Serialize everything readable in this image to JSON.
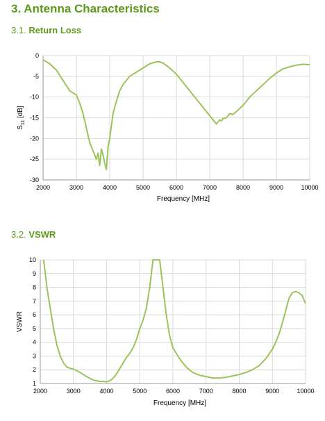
{
  "section": {
    "number": "3.",
    "title": "Antenna Characteristics"
  },
  "subsections": [
    {
      "number": "3.1.",
      "title": "Return Loss"
    },
    {
      "number": "3.2.",
      "title": "VSWR"
    }
  ],
  "line_color": "#9bc35a",
  "heading_color": "#5c9a1b",
  "chart_data": [
    {
      "type": "line",
      "title": "",
      "xlabel": "Frequency [MHz]",
      "ylabel": "S11 [dB]",
      "ylabel_main": "S",
      "ylabel_sub": "11",
      "ylabel_unit": " [dB]",
      "xlim": [
        2000,
        10000
      ],
      "ylim": [
        -30,
        0
      ],
      "xticks": [
        2000,
        3000,
        4000,
        5000,
        6000,
        7000,
        8000,
        9000,
        10000
      ],
      "yticks": [
        0,
        -5,
        -10,
        -15,
        -20,
        -25,
        -30
      ],
      "grid": true,
      "series": [
        {
          "x": [
            2000,
            2200,
            2400,
            2600,
            2800,
            2900,
            3000,
            3100,
            3200,
            3300,
            3400,
            3500,
            3600,
            3650,
            3700,
            3750,
            3800,
            3850,
            3900,
            3950,
            4000,
            4050,
            4100,
            4200,
            4300,
            4400,
            4500,
            4600,
            4800,
            5000,
            5200,
            5400,
            5500,
            5600,
            5800,
            6000,
            6200,
            6400,
            6600,
            6800,
            7000,
            7100,
            7200,
            7250,
            7300,
            7350,
            7400,
            7500,
            7600,
            7700,
            7800,
            8000,
            8200,
            8400,
            8600,
            8800,
            9000,
            9200,
            9400,
            9600,
            9800,
            10000
          ],
          "y": [
            -1.0,
            -2.0,
            -3.5,
            -6.0,
            -8.5,
            -9.0,
            -9.5,
            -11.5,
            -14.0,
            -17.5,
            -21.0,
            -23.0,
            -25.0,
            -23.5,
            -26.5,
            -22.5,
            -24.0,
            -26.0,
            -27.5,
            -22.0,
            -20.0,
            -17.0,
            -14.0,
            -11.0,
            -8.5,
            -7.0,
            -6.0,
            -5.0,
            -4.0,
            -3.0,
            -2.0,
            -1.5,
            -1.5,
            -1.8,
            -3.0,
            -4.5,
            -6.5,
            -8.5,
            -10.5,
            -12.5,
            -14.5,
            -15.5,
            -16.5,
            -16.0,
            -15.5,
            -15.8,
            -15.2,
            -15.0,
            -14.0,
            -14.2,
            -13.5,
            -12.0,
            -10.0,
            -8.5,
            -7.0,
            -5.5,
            -4.2,
            -3.2,
            -2.7,
            -2.3,
            -2.1,
            -2.2
          ]
        }
      ]
    },
    {
      "type": "line",
      "title": "",
      "xlabel": "Frequency [MHz]",
      "ylabel": "VSWR",
      "xlim": [
        2000,
        10000
      ],
      "ylim": [
        1,
        10
      ],
      "xticks": [
        2000,
        3000,
        4000,
        5000,
        6000,
        7000,
        8000,
        9000,
        10000
      ],
      "yticks": [
        10,
        9,
        8,
        7,
        6,
        5,
        4,
        3,
        2,
        1
      ],
      "grid": true,
      "series": [
        {
          "x": [
            2100,
            2150,
            2200,
            2300,
            2400,
            2500,
            2600,
            2700,
            2800,
            2900,
            3000,
            3200,
            3400,
            3600,
            3800,
            3900,
            4000,
            4100,
            4200,
            4300,
            4400,
            4500,
            4600,
            4700,
            4800,
            4900,
            5000,
            5100,
            5200,
            5300,
            5350,
            5400,
            5450,
            5600,
            5650,
            5700,
            5800,
            5900,
            6000,
            6200,
            6400,
            6600,
            6800,
            7000,
            7200,
            7400,
            7600,
            7800,
            8000,
            8200,
            8400,
            8600,
            8800,
            9000,
            9100,
            9200,
            9300,
            9400,
            9500,
            9600,
            9700,
            9800,
            9900,
            10000
          ],
          "y": [
            10,
            9.0,
            8.0,
            6.5,
            5.0,
            3.8,
            3.0,
            2.5,
            2.2,
            2.1,
            2.05,
            1.8,
            1.5,
            1.25,
            1.15,
            1.15,
            1.12,
            1.2,
            1.4,
            1.7,
            2.1,
            2.5,
            2.9,
            3.2,
            3.6,
            4.2,
            5.0,
            5.6,
            6.5,
            8.0,
            9.0,
            10,
            10,
            10,
            9.0,
            8.0,
            6.0,
            4.5,
            3.6,
            2.8,
            2.2,
            1.8,
            1.6,
            1.5,
            1.4,
            1.4,
            1.45,
            1.55,
            1.65,
            1.8,
            2.0,
            2.3,
            2.8,
            3.5,
            4.0,
            4.6,
            5.4,
            6.3,
            7.2,
            7.6,
            7.7,
            7.6,
            7.4,
            6.8
          ]
        }
      ]
    }
  ]
}
